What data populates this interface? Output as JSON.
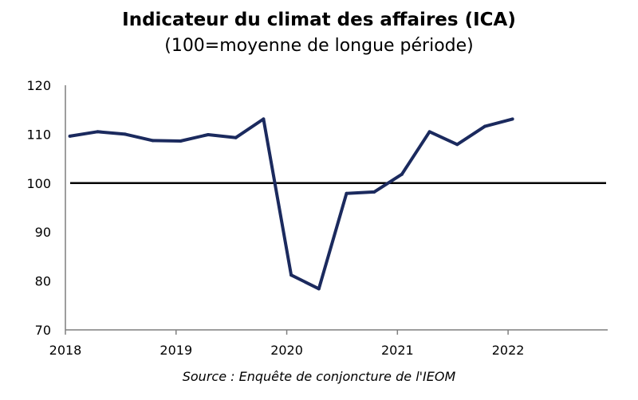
{
  "chart_data": {
    "type": "line",
    "title": "Indicateur du climat des affaires (ICA)",
    "subtitle": "(100=moyenne de longue période)",
    "source": "Source : Enquête de conjoncture de l'IEOM",
    "xlabel": "",
    "ylabel": "",
    "xlim": [
      2018,
      2022.9
    ],
    "ylim": [
      70,
      120
    ],
    "x_ticks": [
      2018,
      2019,
      2020,
      2021,
      2022
    ],
    "y_ticks": [
      70,
      80,
      90,
      100,
      110,
      120
    ],
    "reference_line": 100,
    "grid": false,
    "series": [
      {
        "color": "#1b2a5e",
        "x": [
          2018.04,
          2018.29,
          2018.54,
          2018.79,
          2019.04,
          2019.29,
          2019.54,
          2019.79,
          2020.04,
          2020.29,
          2020.54,
          2020.79,
          2021.04,
          2021.29,
          2021.54,
          2021.79,
          2022.04
        ],
        "values": [
          109.6,
          110.5,
          110.0,
          108.7,
          108.6,
          109.9,
          109.3,
          113.1,
          81.2,
          78.4,
          97.9,
          98.2,
          101.8,
          110.5,
          107.9,
          111.6,
          113.1
        ]
      }
    ]
  }
}
